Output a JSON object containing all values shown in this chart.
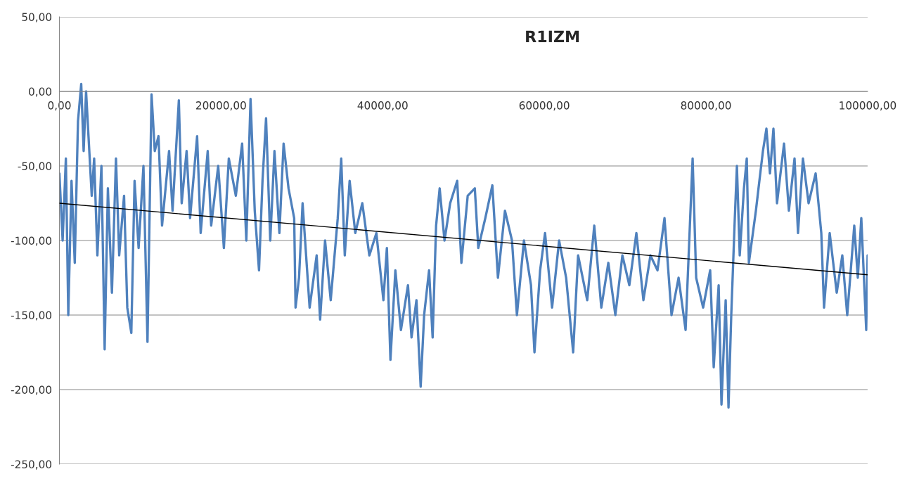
{
  "chart_data": {
    "type": "line",
    "title": "R1IZM",
    "series": [
      {
        "color": "#4f81bd",
        "x": [
          0,
          400,
          800,
          1100,
          1500,
          1900,
          2300,
          2700,
          3000,
          3300,
          3600,
          4000,
          4300,
          4700,
          5200,
          5600,
          6000,
          6500,
          7000,
          7400,
          8000,
          8400,
          8900,
          9300,
          9800,
          10400,
          10900,
          11400,
          11800,
          12260,
          12700,
          13570,
          14000,
          14780,
          15130,
          15740,
          16170,
          17040,
          17480,
          18350,
          18780,
          19650,
          20350,
          20960,
          21830,
          22610,
          23130,
          23650,
          24170,
          24700,
          25130,
          25570,
          26090,
          26610,
          27220,
          27740,
          28350,
          29050,
          29220,
          29650,
          30090,
          30960,
          31830,
          32260,
          32870,
          33570,
          34440,
          34870,
          35310,
          35910,
          36610,
          37480,
          38350,
          39220,
          40090,
          40520,
          40960,
          41570,
          42260,
          43130,
          43570,
          44180,
          44700,
          45130,
          45740,
          46180,
          46610,
          47050,
          47650,
          48350,
          49220,
          49740,
          50520,
          51400,
          51830,
          52700,
          53570,
          54260,
          55130,
          56000,
          56610,
          57480,
          58350,
          58780,
          59480,
          60090,
          60960,
          61830,
          62700,
          63570,
          64180,
          65310,
          66180,
          67050,
          67920,
          68790,
          69660,
          70520,
          71390,
          72260,
          73130,
          74000,
          74870,
          75740,
          76610,
          77480,
          78350,
          78790,
          79650,
          80520,
          80960,
          81570,
          81920,
          82440,
          82790,
          83130,
          83570,
          83830,
          84180,
          84700,
          85050,
          85310,
          86180,
          86610,
          87050,
          87480,
          87920,
          88350,
          88790,
          89660,
          90260,
          90960,
          91390,
          92000,
          92700,
          93570,
          94270,
          94610,
          95310,
          96180,
          96870,
          97480,
          98350,
          98790,
          99220,
          99830,
          100000
        ],
        "values": [
          -55,
          -100,
          -45,
          -150,
          -60,
          -115,
          -20,
          5,
          -40,
          0,
          -30,
          -70,
          -45,
          -110,
          -50,
          -173,
          -65,
          -135,
          -45,
          -110,
          -70,
          -145,
          -162,
          -60,
          -105,
          -50,
          -168,
          -2,
          -40,
          -30,
          -90,
          -40,
          -80,
          -6,
          -75,
          -40,
          -85,
          -30,
          -95,
          -40,
          -90,
          -50,
          -105,
          -45,
          -70,
          -35,
          -100,
          -5,
          -80,
          -120,
          -60,
          -18,
          -100,
          -40,
          -95,
          -35,
          -65,
          -85,
          -145,
          -125,
          -75,
          -145,
          -110,
          -153,
          -100,
          -140,
          -85,
          -45,
          -110,
          -60,
          -95,
          -75,
          -110,
          -95,
          -140,
          -105,
          -180,
          -120,
          -160,
          -130,
          -165,
          -140,
          -198,
          -150,
          -120,
          -165,
          -90,
          -65,
          -100,
          -75,
          -60,
          -115,
          -70,
          -65,
          -105,
          -85,
          -63,
          -125,
          -80,
          -100,
          -150,
          -100,
          -130,
          -175,
          -120,
          -95,
          -145,
          -100,
          -125,
          -175,
          -110,
          -140,
          -90,
          -145,
          -115,
          -150,
          -110,
          -130,
          -95,
          -140,
          -110,
          -120,
          -85,
          -150,
          -125,
          -160,
          -45,
          -125,
          -145,
          -120,
          -185,
          -130,
          -210,
          -140,
          -212,
          -150,
          -85,
          -50,
          -110,
          -65,
          -45,
          -115,
          -80,
          -60,
          -40,
          -25,
          -55,
          -25,
          -75,
          -35,
          -80,
          -45,
          -95,
          -45,
          -75,
          -55,
          -95,
          -145,
          -95,
          -135,
          -110,
          -150,
          -90,
          -125,
          -85,
          -160,
          -110
        ]
      },
      {
        "color": "#000000",
        "x": [
          0,
          100000
        ],
        "values": [
          -75,
          -123
        ]
      }
    ],
    "xlim": [
      0,
      100000
    ],
    "xticks": [
      {
        "value": 0,
        "label": "0,00"
      },
      {
        "value": 20000,
        "label": "20000,00"
      },
      {
        "value": 40000,
        "label": "40000,00"
      },
      {
        "value": 60000,
        "label": "60000,00"
      },
      {
        "value": 80000,
        "label": "80000,00"
      },
      {
        "value": 100000,
        "label": "100000,00"
      }
    ],
    "ylim": [
      -250,
      50
    ],
    "yticks": [
      {
        "value": -250,
        "label": "-250,00"
      },
      {
        "value": -200,
        "label": "-200,00"
      },
      {
        "value": -150,
        "label": "-150,00"
      },
      {
        "value": -100,
        "label": "-100,00"
      },
      {
        "value": -50,
        "label": "-50,00"
      },
      {
        "value": 0,
        "label": "0,00"
      },
      {
        "value": 50,
        "label": "50,00"
      }
    ],
    "grid": "y",
    "legend": false
  }
}
